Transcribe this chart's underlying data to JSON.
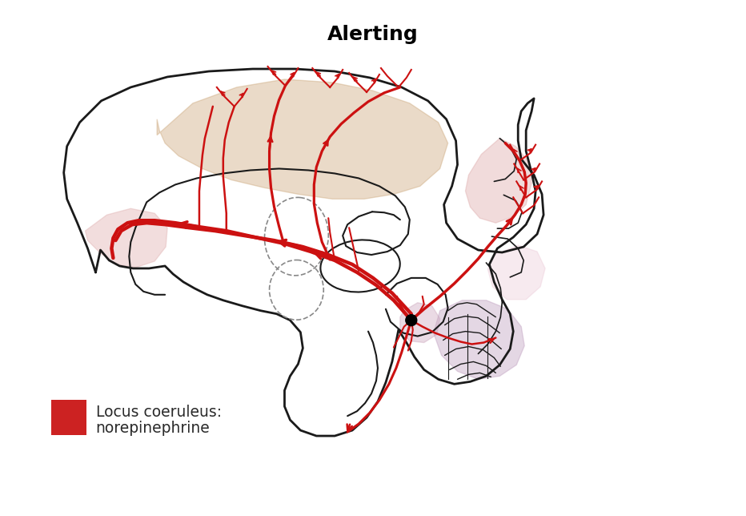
{
  "title": "Alerting",
  "title_fontsize": 18,
  "title_fontweight": "bold",
  "legend_label_line1": "Locus coeruleus:",
  "legend_label_line2": "norepinephrine",
  "legend_color": "#CC2222",
  "background_color": "#ffffff",
  "brain_outline_color": "#1a1a1a",
  "pathway_color": "#CC1111"
}
